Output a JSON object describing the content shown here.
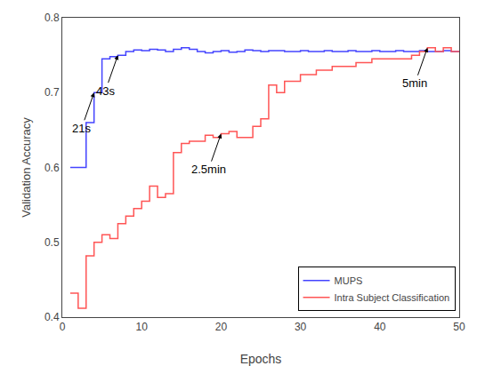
{
  "chart_data": {
    "type": "step",
    "x_label": "Epochs",
    "y_label": "Validation Accuracy",
    "x": [
      1,
      2,
      3,
      4,
      5,
      6,
      7,
      8,
      9,
      10,
      11,
      12,
      13,
      14,
      15,
      16,
      17,
      18,
      19,
      20,
      21,
      22,
      23,
      24,
      25,
      26,
      27,
      28,
      29,
      30,
      31,
      32,
      33,
      34,
      35,
      36,
      37,
      38,
      39,
      40,
      41,
      42,
      43,
      44,
      45,
      46,
      47,
      48,
      49,
      50
    ],
    "series": [
      {
        "name": "MUPS",
        "color": "#4444ff",
        "values": [
          0.6,
          0.6,
          0.66,
          0.7,
          0.745,
          0.748,
          0.75,
          0.755,
          0.757,
          0.756,
          0.758,
          0.757,
          0.755,
          0.758,
          0.76,
          0.758,
          0.755,
          0.753,
          0.755,
          0.756,
          0.754,
          0.755,
          0.757,
          0.756,
          0.755,
          0.756,
          0.756,
          0.755,
          0.755,
          0.756,
          0.755,
          0.755,
          0.756,
          0.755,
          0.755,
          0.756,
          0.755,
          0.755,
          0.756,
          0.755,
          0.755,
          0.756,
          0.755,
          0.755,
          0.756,
          0.755,
          0.755,
          0.756,
          0.755,
          0.755
        ]
      },
      {
        "name": "Intra Subject Classification",
        "color": "#ff5555",
        "values": [
          0.432,
          0.412,
          0.482,
          0.5,
          0.51,
          0.505,
          0.525,
          0.535,
          0.545,
          0.555,
          0.575,
          0.56,
          0.565,
          0.62,
          0.632,
          0.635,
          0.635,
          0.643,
          0.64,
          0.645,
          0.648,
          0.64,
          0.64,
          0.655,
          0.665,
          0.71,
          0.7,
          0.715,
          0.715,
          0.724,
          0.724,
          0.73,
          0.73,
          0.735,
          0.735,
          0.735,
          0.74,
          0.74,
          0.745,
          0.745,
          0.745,
          0.745,
          0.745,
          0.75,
          0.755,
          0.76,
          0.755,
          0.76,
          0.755,
          0.755
        ]
      }
    ],
    "annotations": [
      {
        "text": "21s",
        "x": 4,
        "y": 0.7
      },
      {
        "text": "43s",
        "x": 7,
        "y": 0.75
      },
      {
        "text": "2.5min",
        "x": 20,
        "y": 0.645
      },
      {
        "text": "5min",
        "x": 46,
        "y": 0.76
      }
    ],
    "xlim": [
      0,
      50
    ],
    "ylim": [
      0.4,
      0.8
    ],
    "xticks": [
      0,
      10,
      20,
      30,
      40,
      50
    ],
    "yticks": [
      0.4,
      0.5,
      0.6,
      0.7,
      0.8
    ],
    "grid": false,
    "legend": "lower right"
  }
}
